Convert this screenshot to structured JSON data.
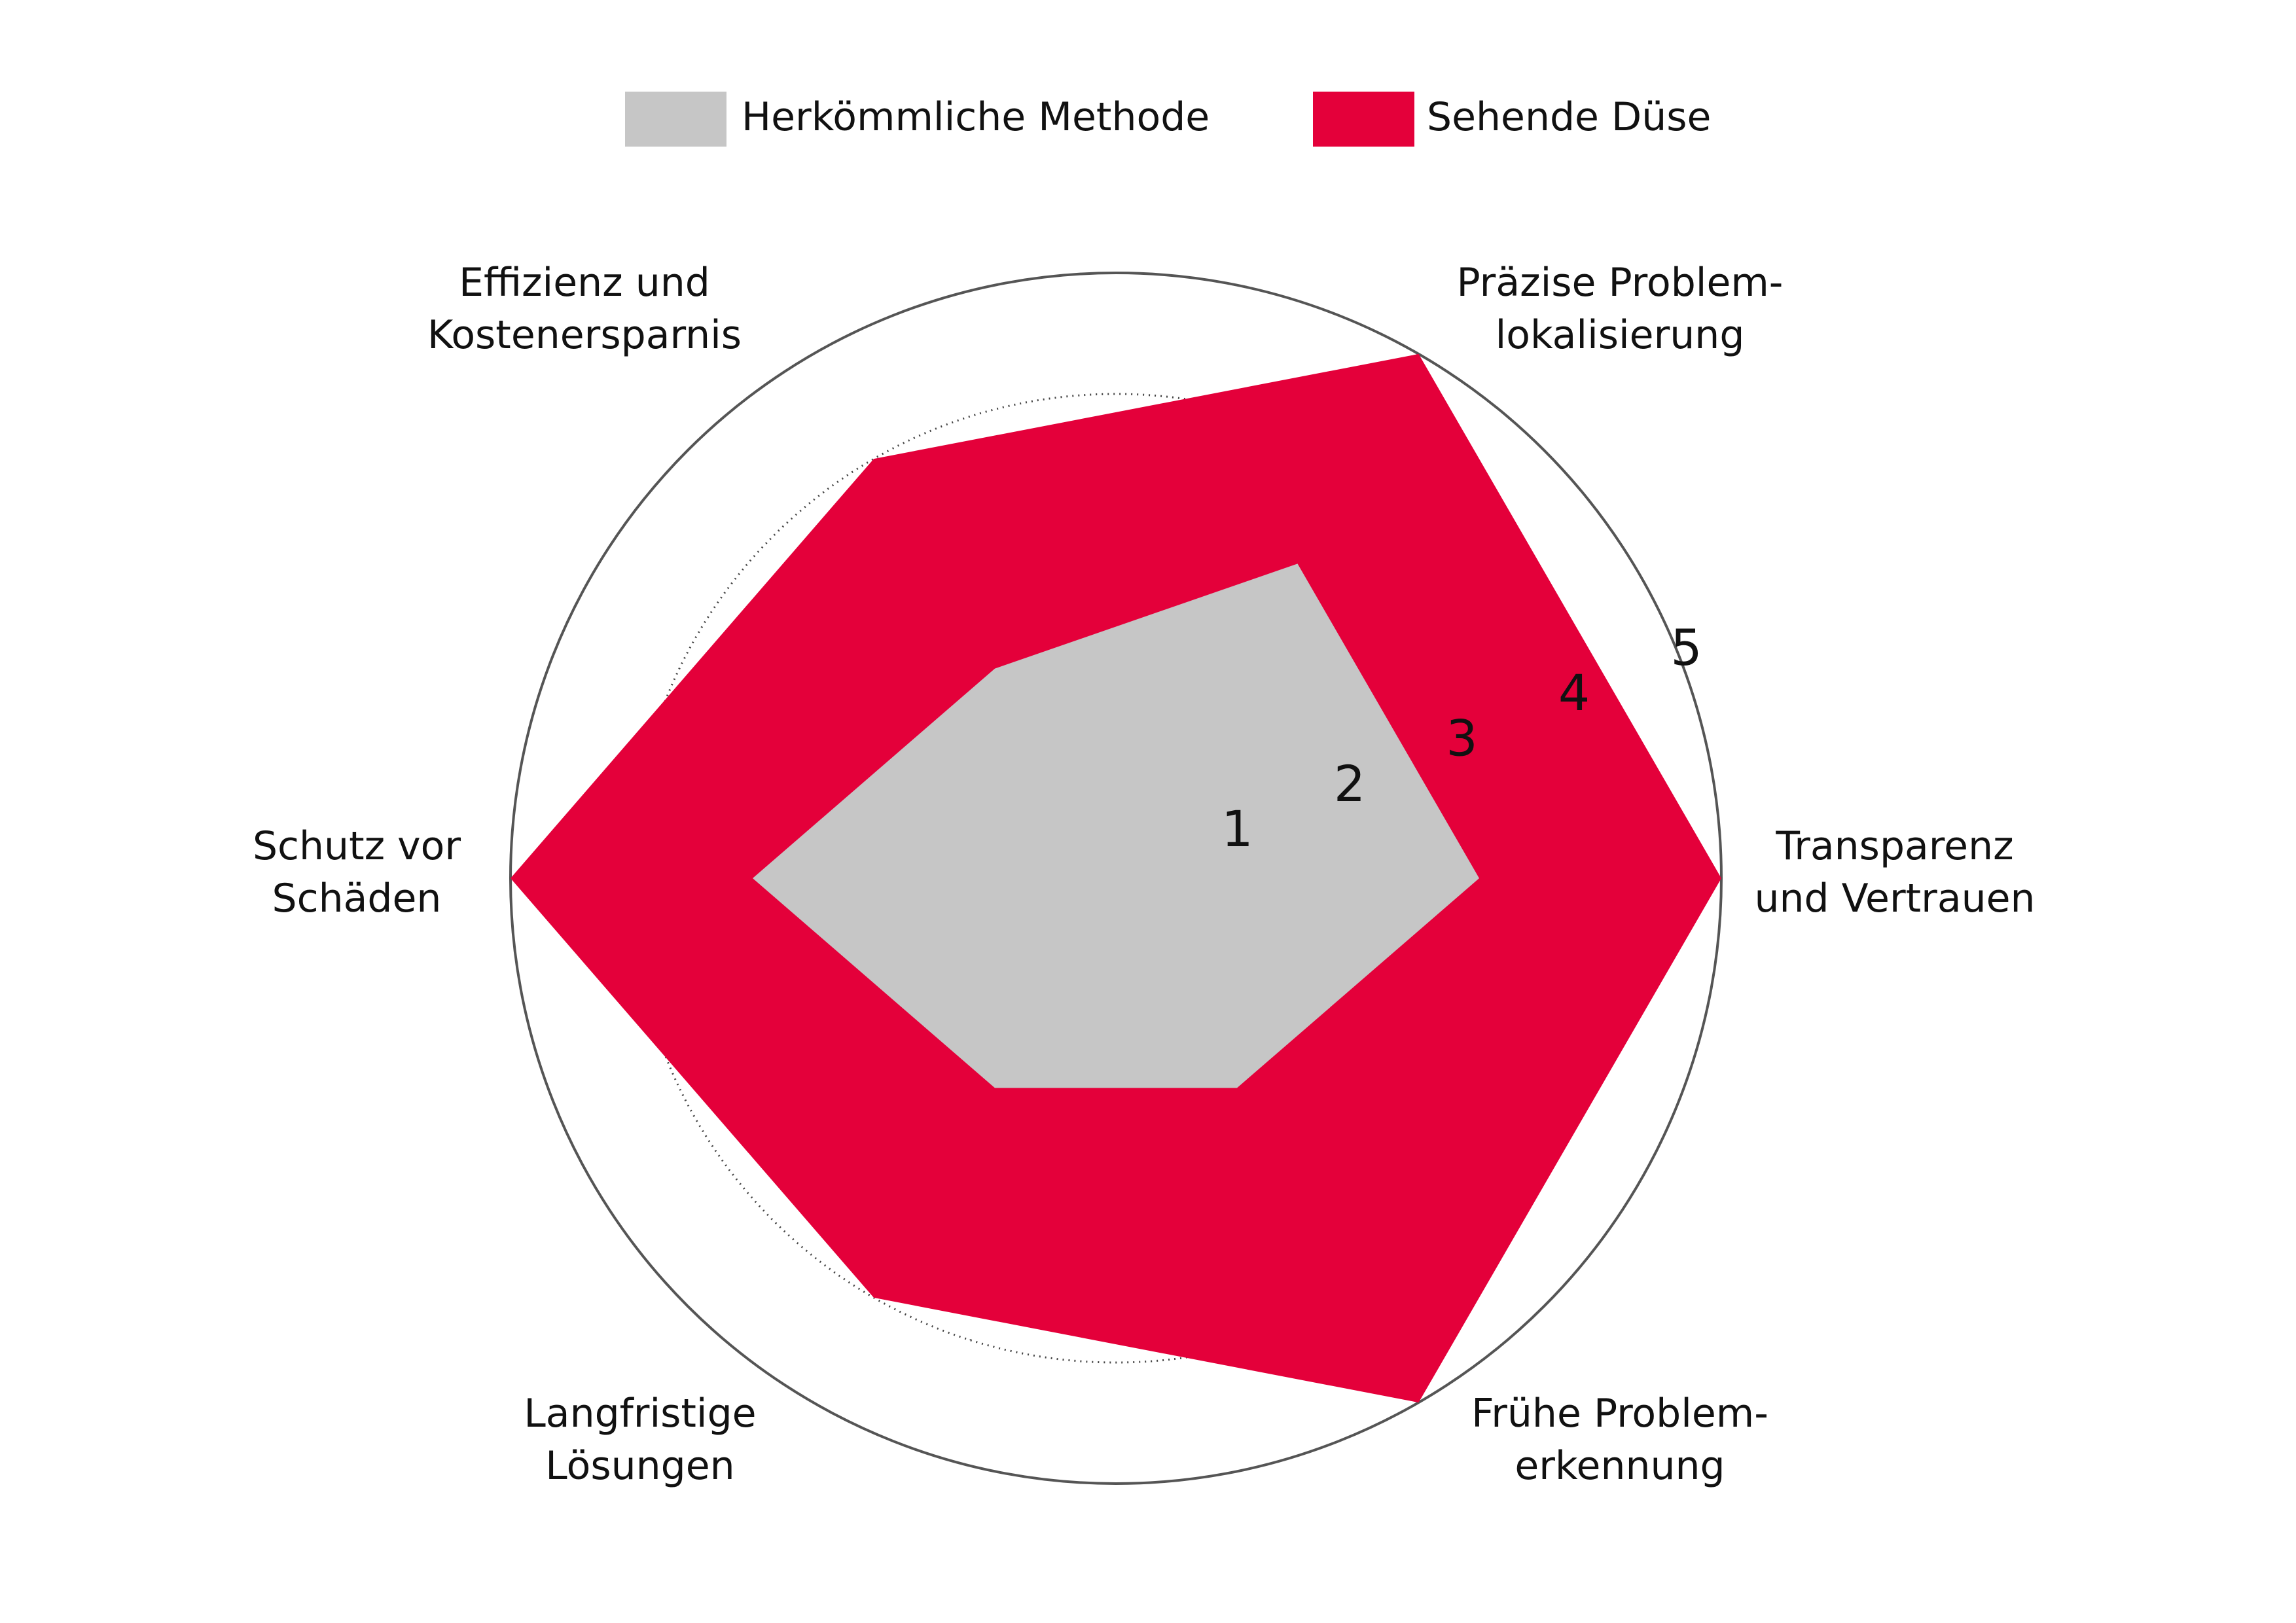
{
  "chart_data": {
    "type": "radar",
    "rmax": 5,
    "ticks": [
      "1",
      "2",
      "3",
      "4",
      "5"
    ],
    "axes": [
      {
        "lines": [
          "Transparenz",
          "und Vertrauen"
        ]
      },
      {
        "lines": [
          "Präzise Problem-",
          "lokalisierung"
        ]
      },
      {
        "lines": [
          "Effizienz und",
          "Kostenersparnis"
        ]
      },
      {
        "lines": [
          "Schutz vor",
          "Schäden"
        ]
      },
      {
        "lines": [
          "Langfristige",
          "Lösungen"
        ]
      },
      {
        "lines": [
          "Frühe Problem-",
          "erkennung"
        ]
      }
    ],
    "series": [
      {
        "name": "Herkömmliche Methode",
        "color": "#c6c6c6",
        "values": [
          3,
          3,
          2,
          3,
          2,
          2
        ]
      },
      {
        "name": "Sehende Düse",
        "color": "#e4003a",
        "values": [
          5,
          5,
          4,
          5,
          4,
          5
        ]
      }
    ],
    "legend_position": "top-center"
  }
}
